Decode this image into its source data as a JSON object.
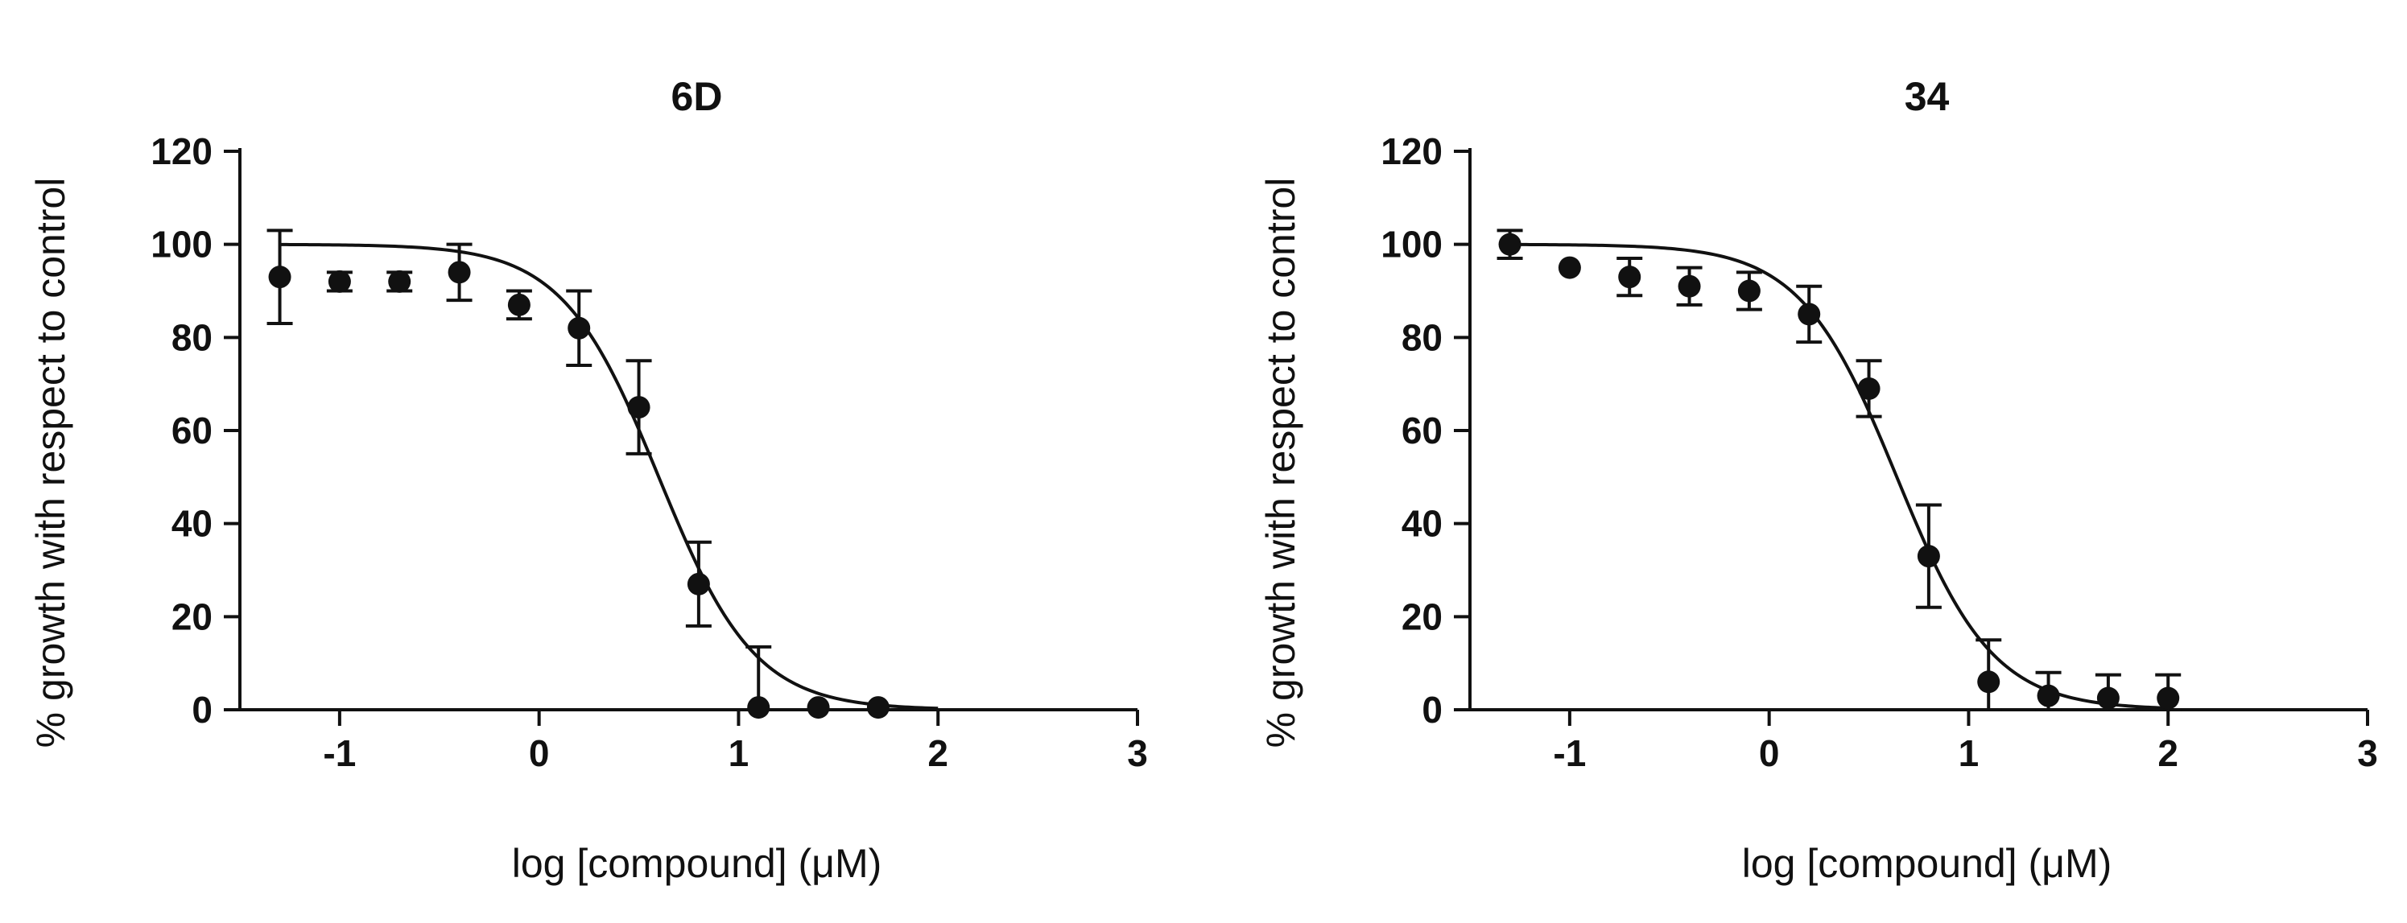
{
  "chart_data": [
    {
      "type": "scatter",
      "title": "6D",
      "xlabel": "log [compound] (μM)",
      "ylabel": "% growth with respect to control",
      "xlim": [
        -1.5,
        3
      ],
      "ylim": [
        0,
        120
      ],
      "xticks": [
        -1,
        0,
        1,
        2,
        3
      ],
      "yticks": [
        0,
        20,
        40,
        60,
        80,
        100,
        120
      ],
      "xtick_labels": [
        "-1",
        "0",
        "1",
        "2",
        "3"
      ],
      "ytick_labels": [
        "0",
        "20",
        "40",
        "60",
        "80",
        "100",
        "120"
      ],
      "grid": false,
      "points": [
        {
          "x": -1.3,
          "y": 93,
          "err": 10
        },
        {
          "x": -1.0,
          "y": 92,
          "err": 2
        },
        {
          "x": -0.7,
          "y": 92,
          "err": 2
        },
        {
          "x": -0.4,
          "y": 94,
          "err": 6
        },
        {
          "x": -0.1,
          "y": 87,
          "err": 3
        },
        {
          "x": 0.2,
          "y": 82,
          "err": 8
        },
        {
          "x": 0.5,
          "y": 65,
          "err": 10
        },
        {
          "x": 0.8,
          "y": 27,
          "err": 9
        },
        {
          "x": 1.1,
          "y": 0.5,
          "err": 13
        },
        {
          "x": 1.4,
          "y": 0.5,
          "err": 0
        },
        {
          "x": 1.7,
          "y": 0.5,
          "err": 0
        }
      ],
      "fit": {
        "top": 100,
        "bottom": 0,
        "log_ic50": 0.6,
        "hill_slope": 1.8,
        "x_range": [
          -1.3,
          2.0
        ]
      }
    },
    {
      "type": "scatter",
      "title": "34",
      "xlabel": "log [compound] (μM)",
      "ylabel": "% growth with respect to control",
      "xlim": [
        -1.5,
        3
      ],
      "ylim": [
        0,
        120
      ],
      "xticks": [
        -1,
        0,
        1,
        2,
        3
      ],
      "yticks": [
        0,
        20,
        40,
        60,
        80,
        100,
        120
      ],
      "xtick_labels": [
        "-1",
        "0",
        "1",
        "2",
        "3"
      ],
      "ytick_labels": [
        "0",
        "20",
        "40",
        "60",
        "80",
        "100",
        "120"
      ],
      "grid": false,
      "points": [
        {
          "x": -1.3,
          "y": 100,
          "err": 3
        },
        {
          "x": -1.0,
          "y": 95,
          "err": 0
        },
        {
          "x": -0.7,
          "y": 93,
          "err": 4
        },
        {
          "x": -0.4,
          "y": 91,
          "err": 4
        },
        {
          "x": -0.1,
          "y": 90,
          "err": 4
        },
        {
          "x": 0.2,
          "y": 85,
          "err": 6
        },
        {
          "x": 0.5,
          "y": 69,
          "err": 6
        },
        {
          "x": 0.8,
          "y": 33,
          "err": 11
        },
        {
          "x": 1.1,
          "y": 6,
          "err": 9
        },
        {
          "x": 1.4,
          "y": 3,
          "err": 5
        },
        {
          "x": 1.7,
          "y": 2.5,
          "err": 5
        },
        {
          "x": 2.0,
          "y": 2.5,
          "err": 5
        }
      ],
      "fit": {
        "top": 100,
        "bottom": 0,
        "log_ic50": 0.64,
        "hill_slope": 1.8,
        "x_range": [
          -1.3,
          2.0
        ]
      }
    }
  ]
}
